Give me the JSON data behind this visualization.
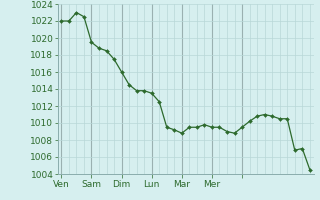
{
  "y_values": [
    1022,
    1022,
    1023,
    1022.5,
    1019.5,
    1018.8,
    1018.5,
    1017.5,
    1016,
    1014.5,
    1013.8,
    1013.8,
    1013.5,
    1012.5,
    1009.5,
    1009.2,
    1008.8,
    1009.5,
    1009.5,
    1009.8,
    1009.5,
    1009.5,
    1009.0,
    1008.8,
    1009.5,
    1010.2,
    1010.8,
    1011,
    1010.8,
    1010.5,
    1010.5,
    1006.8,
    1007.0,
    1004.5
  ],
  "day_tick_xs": [
    0,
    4,
    8,
    12,
    16,
    20,
    24
  ],
  "day_labels": [
    "Ven",
    "Sam",
    "Dim",
    "Lun",
    "Mar",
    "Mer",
    ""
  ],
  "ylim": [
    1004,
    1024
  ],
  "yticks": [
    1004,
    1006,
    1008,
    1010,
    1012,
    1014,
    1016,
    1018,
    1020,
    1022,
    1024
  ],
  "line_color": "#2d6a2d",
  "bg_color": "#d6efef",
  "grid_major_color": "#b8d8d8",
  "grid_minor_color": "#c8e4e4",
  "tick_color": "#2d6a2d",
  "font_size": 6.5
}
